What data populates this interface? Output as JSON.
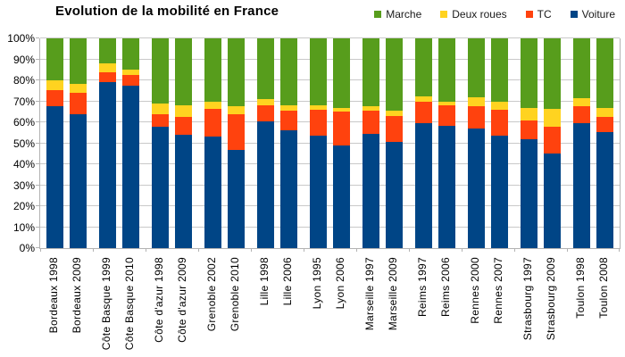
{
  "chart": {
    "title": "Evolution de la mobilité en France"
  },
  "colors": {
    "voiture": "#004586",
    "tc": "#ff420e",
    "deux_roues": "#ffd320",
    "marche": "#579d1c",
    "gridline": "#c9c9c9",
    "axis": "#b3b3b3",
    "background": "#ffffff",
    "text": "#000000"
  },
  "legend": {
    "order": [
      "Marche",
      "Deux roues",
      "TC",
      "Voiture"
    ]
  },
  "chart_data": {
    "type": "bar",
    "stacked": true,
    "title": "Evolution de la mobilité en France",
    "xlabel": "",
    "ylabel": "",
    "ylim": [
      0,
      100
    ],
    "grid": true,
    "legend_position": "top-right",
    "yticks": [
      "0%",
      "10%",
      "20%",
      "30%",
      "40%",
      "50%",
      "60%",
      "70%",
      "80%",
      "90%",
      "100%"
    ],
    "categories": [
      "Bordeaux 1998",
      "Bordeaux 2009",
      "Côte Basque 1999",
      "Côte Basque 2010",
      "Côte d'azur 1998",
      "Côte d'azur 2009",
      "Grenoble 2002",
      "Grenoble 2010",
      "Lille 1998",
      "Lille 2006",
      "Lyon 1995",
      "Lyon 2006",
      "Marseille 1997",
      "Marseille 2009",
      "Reims 1997",
      "Reims 2006",
      "Rennes 2000",
      "Rennes 2007",
      "Strasbourg 1997",
      "Strasbourg 2009",
      "Toulon 1998",
      "Toulon 2008"
    ],
    "series": [
      {
        "name": "Voiture",
        "color": "#004586",
        "values": [
          67.5,
          64,
          79,
          77.5,
          58,
          54,
          53,
          47,
          60.5,
          56,
          53.5,
          49,
          54.5,
          50.5,
          59.5,
          58.5,
          57,
          53.5,
          52,
          45,
          59.5,
          55.5
        ]
      },
      {
        "name": "TC",
        "color": "#ff420e",
        "values": [
          8,
          10,
          5,
          5,
          6,
          8.5,
          13.5,
          17,
          7.5,
          9.5,
          12.5,
          16,
          11,
          12.5,
          10.5,
          9.5,
          10.5,
          12.5,
          9,
          13,
          8,
          7
        ]
      },
      {
        "name": "Deux roues",
        "color": "#ffd320",
        "values": [
          4.5,
          4.5,
          4,
          2.5,
          5,
          5.5,
          3.5,
          3.5,
          3,
          2.5,
          2,
          2,
          2,
          2.5,
          2.5,
          2,
          4.5,
          4,
          6,
          8.5,
          4,
          4.5
        ]
      },
      {
        "name": "Marche",
        "color": "#579d1c",
        "values": [
          20,
          21.5,
          12,
          15,
          31,
          32,
          30,
          32.5,
          29,
          32,
          32,
          33,
          32.5,
          34.5,
          27.5,
          30,
          28,
          30,
          33,
          33.5,
          28.5,
          33
        ]
      }
    ]
  }
}
